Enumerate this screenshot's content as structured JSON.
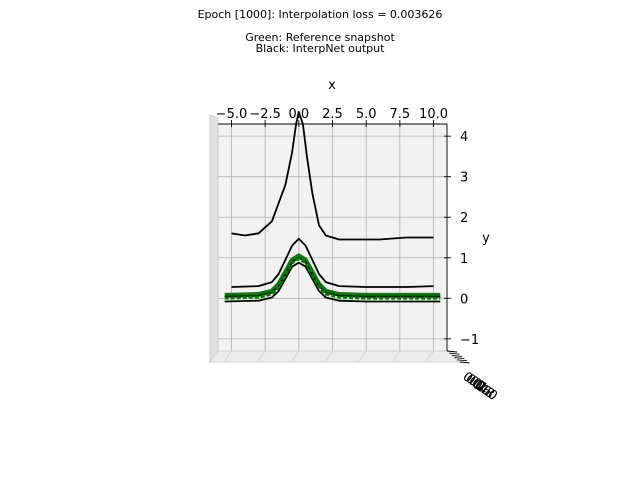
{
  "chart_data": {
    "type": "line",
    "title": "Epoch [1000]: Interpolation loss = 0.003626",
    "subtitle_lines": [
      "Green: Reference snapshot",
      "Black: InterpNet output"
    ],
    "xlabel": "x",
    "ylabel": "y",
    "xlim": [
      -6.0,
      11.0
    ],
    "ylim": [
      -1.3,
      4.3
    ],
    "x_ticks": [
      -5.0,
      -2.5,
      0.0,
      2.5,
      5.0,
      7.5,
      10.0
    ],
    "x_tick_labels": [
      "−5.0",
      "−2.5",
      "0.0",
      "2.5",
      "5.0",
      "7.5",
      "10.0"
    ],
    "y_ticks": [
      -1,
      0,
      1,
      2,
      3,
      4
    ],
    "y_tick_labels": [
      "−1",
      "0",
      "1",
      "2",
      "3",
      "4"
    ],
    "depth_tick_labels": [
      "0.0",
      "0.2",
      "0.4",
      "0.6",
      "0.8",
      "1.0"
    ],
    "grid": true,
    "projection": "3d",
    "colors": {
      "reference": "#008000",
      "interpnet": "#000000",
      "pane": "#f2f2f2",
      "grid": "#b0b0b0"
    },
    "series": [
      {
        "color": "#000000",
        "style": "solid",
        "x": [
          -5.0,
          -4.0,
          -3.0,
          -2.0,
          -1.0,
          -0.5,
          -0.2,
          0.0,
          0.3,
          0.6,
          1.0,
          1.5,
          2.0,
          3.0,
          4.0,
          6.0,
          8.0,
          10.0
        ],
        "y": [
          1.6,
          1.55,
          1.6,
          1.9,
          2.8,
          3.6,
          4.3,
          4.6,
          4.3,
          3.5,
          2.6,
          1.8,
          1.55,
          1.45,
          1.45,
          1.45,
          1.5,
          1.5
        ]
      },
      {
        "color": "#000000",
        "style": "solid",
        "x": [
          -5.0,
          -3.0,
          -2.0,
          -1.5,
          -1.0,
          -0.5,
          0.0,
          0.5,
          1.0,
          1.5,
          2.0,
          3.0,
          5.0,
          8.0,
          10.0
        ],
        "y": [
          0.28,
          0.3,
          0.4,
          0.6,
          0.95,
          1.3,
          1.47,
          1.3,
          0.95,
          0.6,
          0.4,
          0.3,
          0.28,
          0.28,
          0.3
        ]
      },
      {
        "color": "#008000",
        "style": "solid",
        "x": [
          -5.5,
          -3.0,
          -2.0,
          -1.5,
          -1.0,
          -0.5,
          0.0,
          0.5,
          1.0,
          1.5,
          2.0,
          3.0,
          5.0,
          8.0,
          10.5
        ],
        "y": [
          0.08,
          0.1,
          0.18,
          0.35,
          0.65,
          0.95,
          1.05,
          0.95,
          0.65,
          0.35,
          0.18,
          0.1,
          0.08,
          0.08,
          0.08
        ]
      },
      {
        "color": "#000000",
        "style": "solid",
        "x": [
          -5.5,
          -3.0,
          -2.0,
          -1.5,
          -1.0,
          -0.5,
          0.0,
          0.5,
          1.0,
          1.5,
          2.0,
          3.0,
          5.0,
          8.0,
          10.5
        ],
        "y": [
          0.04,
          0.06,
          0.14,
          0.3,
          0.6,
          0.9,
          1.0,
          0.9,
          0.6,
          0.3,
          0.14,
          0.06,
          0.04,
          0.04,
          0.04
        ]
      },
      {
        "color": "#000000",
        "style": "solid",
        "x": [
          -5.5,
          -3.0,
          -2.0,
          -1.5,
          -1.0,
          -0.5,
          0.0,
          0.5,
          1.0,
          1.5,
          2.0,
          3.0,
          5.0,
          8.0,
          10.5
        ],
        "y": [
          -0.08,
          -0.06,
          0.02,
          0.18,
          0.48,
          0.78,
          0.88,
          0.78,
          0.48,
          0.18,
          0.02,
          -0.06,
          -0.08,
          -0.08,
          -0.08
        ]
      }
    ]
  }
}
